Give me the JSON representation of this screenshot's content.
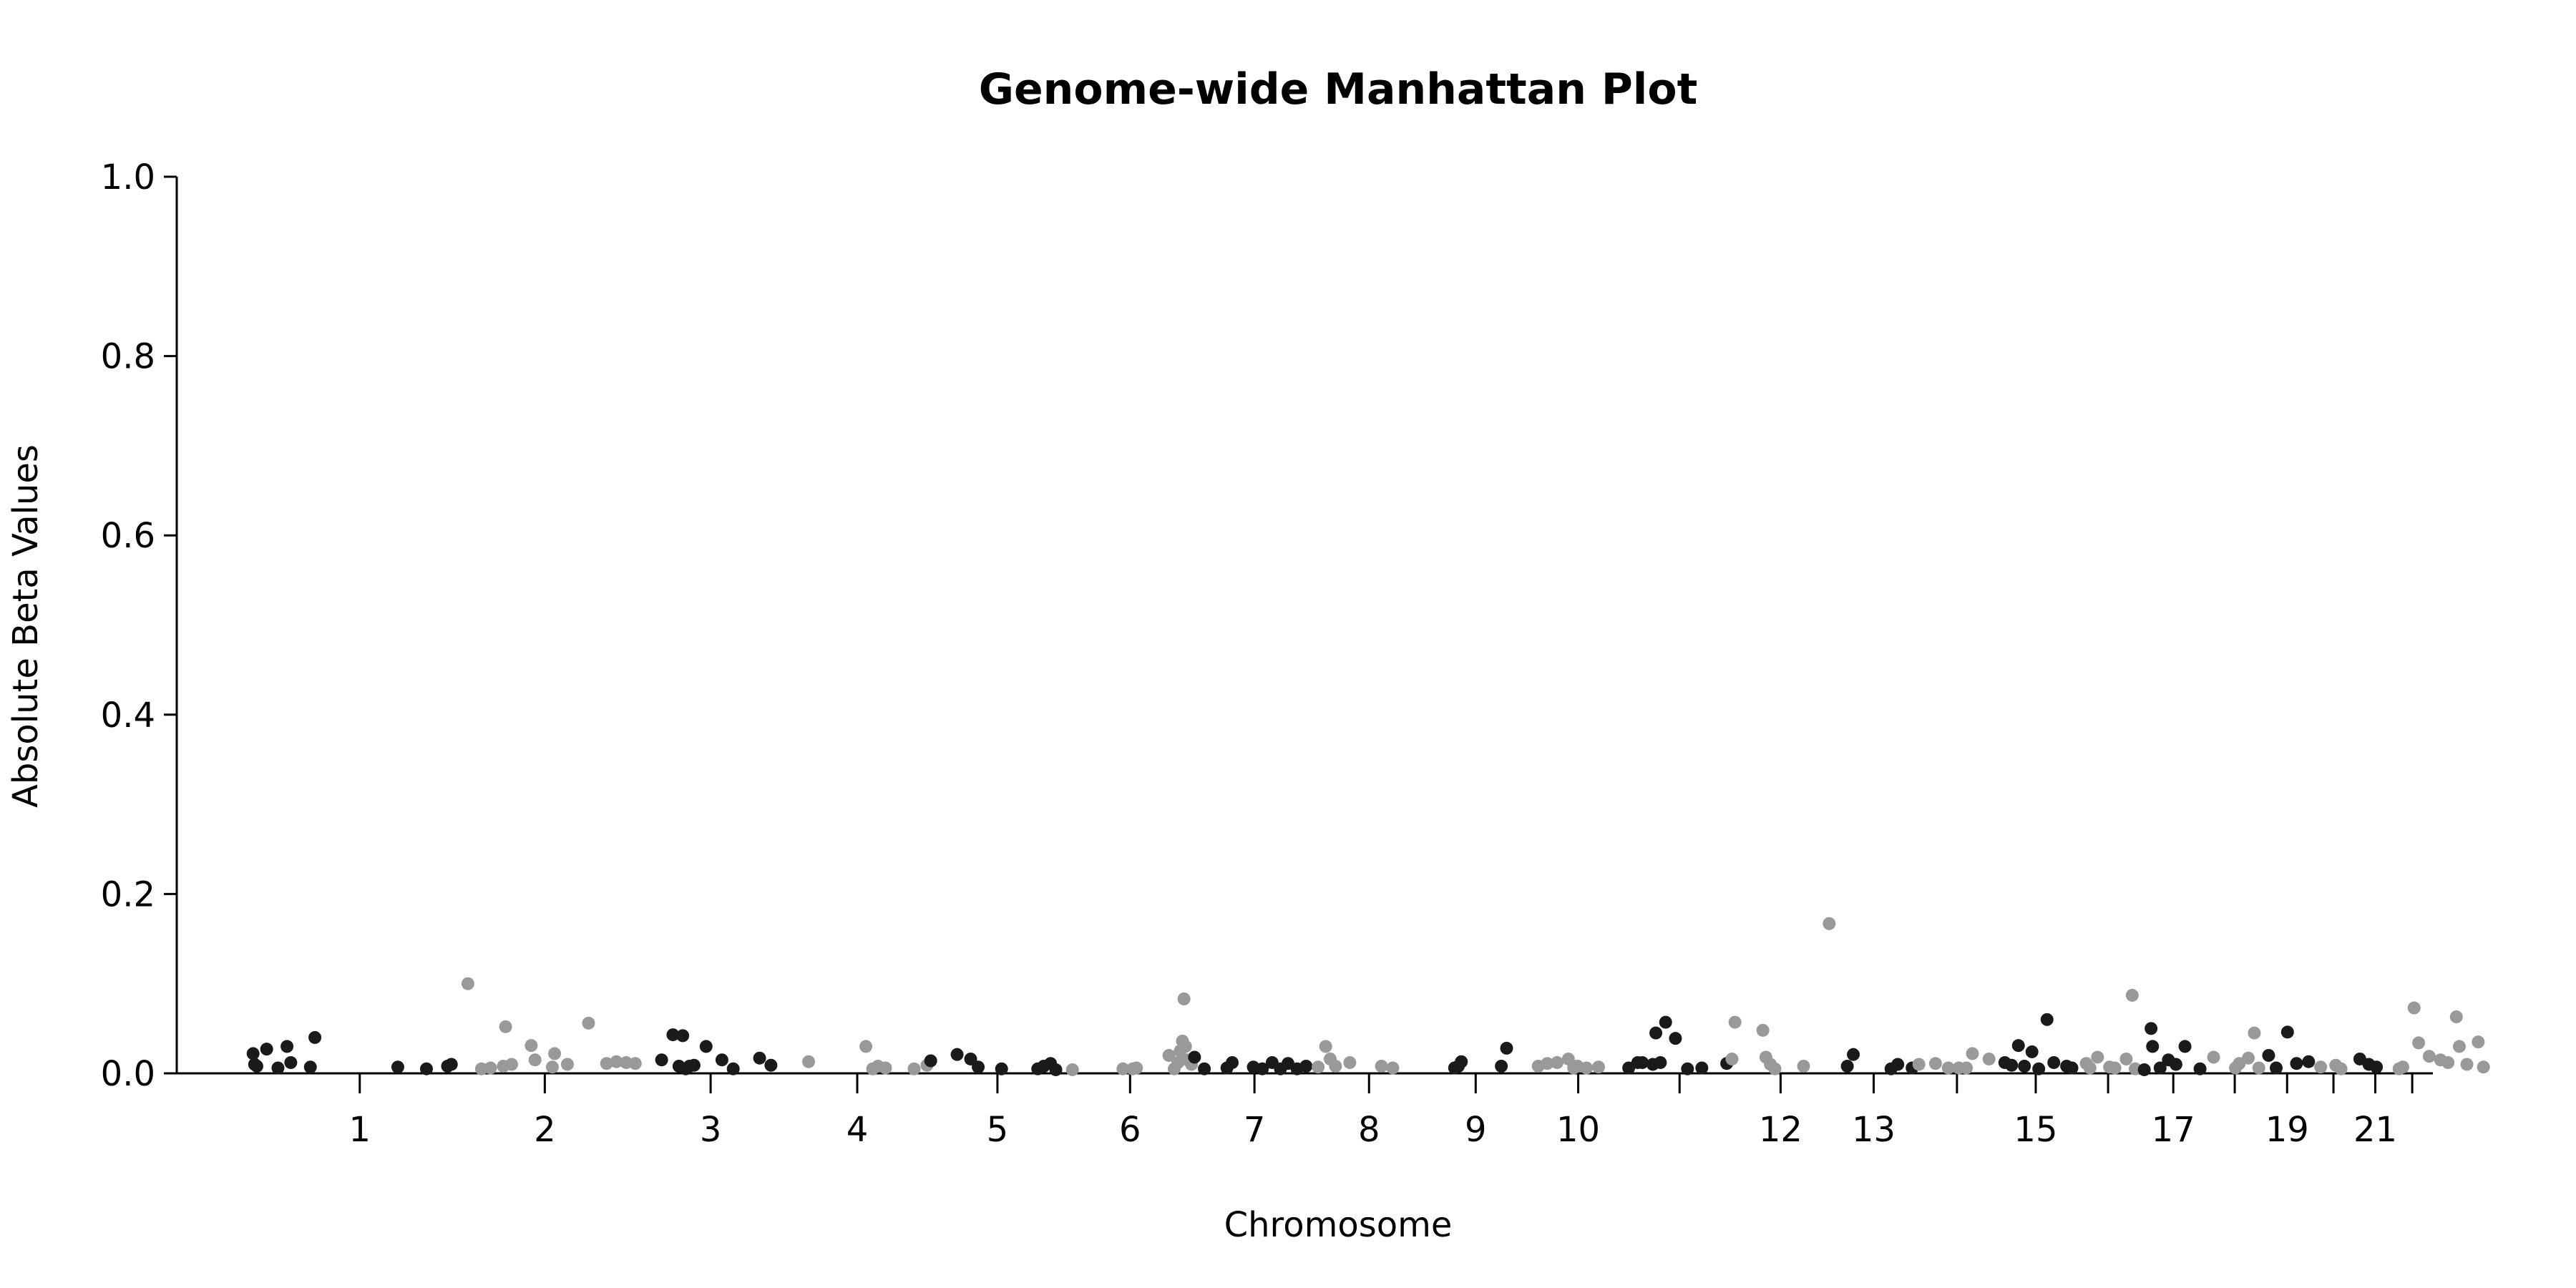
{
  "chart_data": {
    "type": "scatter",
    "title": "Genome-wide Manhattan Plot",
    "xlabel": "Chromosome",
    "ylabel": "Absolute Beta Values",
    "ylim": [
      0,
      1.0
    ],
    "yticks": [
      0.0,
      0.2,
      0.4,
      0.6,
      0.8,
      1.0
    ],
    "ytick_labels": [
      "0.0",
      "0.2",
      "0.4",
      "0.6",
      "0.8",
      "1.0"
    ],
    "grid": false,
    "colors": {
      "odd": "#1a1a1a",
      "even": "#999999"
    },
    "chromosomes": [
      {
        "chr": 1,
        "label": "1",
        "start": 0,
        "end": 249
      },
      {
        "chr": 2,
        "label": "2",
        "start": 249,
        "end": 491
      },
      {
        "chr": 3,
        "label": "3",
        "start": 491,
        "end": 689
      },
      {
        "chr": 4,
        "label": "4",
        "start": 689,
        "end": 880
      },
      {
        "chr": 5,
        "label": "5",
        "start": 880,
        "end": 1061
      },
      {
        "chr": 6,
        "label": "6",
        "start": 1061,
        "end": 1232
      },
      {
        "chr": 7,
        "label": "7",
        "start": 1232,
        "end": 1391
      },
      {
        "chr": 8,
        "label": "8",
        "start": 1391,
        "end": 1536
      },
      {
        "chr": 9,
        "label": "9",
        "start": 1536,
        "end": 1674
      },
      {
        "chr": 10,
        "label": "10",
        "start": 1674,
        "end": 1808
      },
      {
        "chr": 11,
        "label": "",
        "start": 1808,
        "end": 1943
      },
      {
        "chr": 12,
        "label": "12",
        "start": 1943,
        "end": 2076
      },
      {
        "chr": 13,
        "label": "13",
        "start": 2076,
        "end": 2190
      },
      {
        "chr": 14,
        "label": "",
        "start": 2190,
        "end": 2297
      },
      {
        "chr": 15,
        "label": "15",
        "start": 2297,
        "end": 2399
      },
      {
        "chr": 16,
        "label": "",
        "start": 2399,
        "end": 2489
      },
      {
        "chr": 17,
        "label": "17",
        "start": 2489,
        "end": 2572
      },
      {
        "chr": 18,
        "label": "",
        "start": 2572,
        "end": 2652
      },
      {
        "chr": 19,
        "label": "19",
        "start": 2652,
        "end": 2711
      },
      {
        "chr": 20,
        "label": "",
        "start": 2711,
        "end": 2775
      },
      {
        "chr": 21,
        "label": "21",
        "start": 2775,
        "end": 2822
      },
      {
        "chr": 22,
        "label": "",
        "start": 2822,
        "end": 2873
      }
    ],
    "points": [
      [
        -17,
        0.022
      ],
      [
        -15,
        0.01
      ],
      [
        -12,
        0.008
      ],
      [
        1,
        0.027
      ],
      [
        16,
        0.006
      ],
      [
        28,
        0.03
      ],
      [
        33,
        0.012
      ],
      [
        59,
        0.007
      ],
      [
        65,
        0.04
      ],
      [
        175,
        0.007
      ],
      [
        213,
        0.005
      ],
      [
        241,
        0.008
      ],
      [
        246,
        0.01
      ],
      [
        268,
        0.1
      ],
      [
        286,
        0.005
      ],
      [
        298,
        0.006
      ],
      [
        315,
        0.008
      ],
      [
        318,
        0.052
      ],
      [
        326,
        0.01
      ],
      [
        352,
        0.031
      ],
      [
        357,
        0.015
      ],
      [
        380,
        0.007
      ],
      [
        383,
        0.022
      ],
      [
        400,
        0.01
      ],
      [
        428,
        0.056
      ],
      [
        452,
        0.011
      ],
      [
        465,
        0.013
      ],
      [
        478,
        0.012
      ],
      [
        490,
        0.011
      ],
      [
        525,
        0.015
      ],
      [
        540,
        0.043
      ],
      [
        548,
        0.008
      ],
      [
        553,
        0.042
      ],
      [
        557,
        0.005
      ],
      [
        562,
        0.008
      ],
      [
        568,
        0.009
      ],
      [
        584,
        0.03
      ],
      [
        605,
        0.015
      ],
      [
        620,
        0.005
      ],
      [
        655,
        0.017
      ],
      [
        670,
        0.009
      ],
      [
        720,
        0.013
      ],
      [
        796,
        0.03
      ],
      [
        805,
        0.005
      ],
      [
        812,
        0.008
      ],
      [
        822,
        0.006
      ],
      [
        860,
        0.005
      ],
      [
        877,
        0.009
      ],
      [
        882,
        0.014
      ],
      [
        917,
        0.021
      ],
      [
        935,
        0.016
      ],
      [
        945,
        0.007
      ],
      [
        976,
        0.005
      ],
      [
        1024,
        0.005
      ],
      [
        1032,
        0.008
      ],
      [
        1041,
        0.011
      ],
      [
        1048,
        0.004
      ],
      [
        1070,
        0.004
      ],
      [
        1137,
        0.005
      ],
      [
        1150,
        0.005
      ],
      [
        1155,
        0.006
      ],
      [
        1198,
        0.02
      ],
      [
        1205,
        0.005
      ],
      [
        1210,
        0.012
      ],
      [
        1213,
        0.025
      ],
      [
        1216,
        0.036
      ],
      [
        1218,
        0.083
      ],
      [
        1220,
        0.03
      ],
      [
        1223,
        0.015
      ],
      [
        1228,
        0.01
      ],
      [
        1232,
        0.018
      ],
      [
        1245,
        0.005
      ],
      [
        1275,
        0.006
      ],
      [
        1282,
        0.012
      ],
      [
        1310,
        0.007
      ],
      [
        1322,
        0.005
      ],
      [
        1335,
        0.012
      ],
      [
        1346,
        0.005
      ],
      [
        1356,
        0.011
      ],
      [
        1368,
        0.005
      ],
      [
        1380,
        0.008
      ],
      [
        1396,
        0.007
      ],
      [
        1406,
        0.03
      ],
      [
        1412,
        0.016
      ],
      [
        1419,
        0.008
      ],
      [
        1438,
        0.012
      ],
      [
        1480,
        0.008
      ],
      [
        1495,
        0.006
      ],
      [
        1577,
        0.006
      ],
      [
        1582,
        0.008
      ],
      [
        1586,
        0.013
      ],
      [
        1639,
        0.008
      ],
      [
        1646,
        0.028
      ],
      [
        1688,
        0.008
      ],
      [
        1700,
        0.011
      ],
      [
        1713,
        0.012
      ],
      [
        1728,
        0.016
      ],
      [
        1735,
        0.006
      ],
      [
        1740,
        0.008
      ],
      [
        1752,
        0.006
      ],
      [
        1768,
        0.007
      ],
      [
        1808,
        0.006
      ],
      [
        1820,
        0.012
      ],
      [
        1826,
        0.012
      ],
      [
        1840,
        0.01
      ],
      [
        1844,
        0.045
      ],
      [
        1850,
        0.012
      ],
      [
        1857,
        0.057
      ],
      [
        1870,
        0.039
      ],
      [
        1886,
        0.005
      ],
      [
        1905,
        0.006
      ],
      [
        1938,
        0.011
      ],
      [
        1945,
        0.016
      ],
      [
        1949,
        0.057
      ],
      [
        1986,
        0.048
      ],
      [
        1990,
        0.018
      ],
      [
        1996,
        0.01
      ],
      [
        2002,
        0.005
      ],
      [
        2040,
        0.008
      ],
      [
        2074,
        0.167
      ],
      [
        2098,
        0.008
      ],
      [
        2106,
        0.021
      ],
      [
        2156,
        0.005
      ],
      [
        2165,
        0.01
      ],
      [
        2184,
        0.006
      ],
      [
        2193,
        0.01
      ],
      [
        2215,
        0.011
      ],
      [
        2232,
        0.006
      ],
      [
        2246,
        0.006
      ],
      [
        2256,
        0.006
      ],
      [
        2264,
        0.022
      ],
      [
        2286,
        0.016
      ],
      [
        2307,
        0.012
      ],
      [
        2316,
        0.009
      ],
      [
        2325,
        0.031
      ],
      [
        2333,
        0.008
      ],
      [
        2343,
        0.024
      ],
      [
        2352,
        0.005
      ],
      [
        2363,
        0.06
      ],
      [
        2372,
        0.012
      ],
      [
        2389,
        0.008
      ],
      [
        2396,
        0.006
      ],
      [
        2415,
        0.011
      ],
      [
        2420,
        0.006
      ],
      [
        2430,
        0.018
      ],
      [
        2446,
        0.007
      ],
      [
        2453,
        0.006
      ],
      [
        2468,
        0.016
      ],
      [
        2476,
        0.087
      ],
      [
        2480,
        0.005
      ],
      [
        2492,
        0.004
      ],
      [
        2501,
        0.05
      ],
      [
        2503,
        0.03
      ],
      [
        2513,
        0.006
      ],
      [
        2524,
        0.015
      ],
      [
        2534,
        0.01
      ],
      [
        2546,
        0.03
      ],
      [
        2566,
        0.005
      ],
      [
        2584,
        0.018
      ],
      [
        2613,
        0.006
      ],
      [
        2618,
        0.011
      ],
      [
        2630,
        0.017
      ],
      [
        2638,
        0.045
      ],
      [
        2644,
        0.006
      ],
      [
        2657,
        0.02
      ],
      [
        2667,
        0.006
      ],
      [
        2682,
        0.046
      ],
      [
        2694,
        0.011
      ],
      [
        2710,
        0.013
      ],
      [
        2726,
        0.007
      ],
      [
        2746,
        0.009
      ],
      [
        2753,
        0.005
      ],
      [
        2778,
        0.016
      ],
      [
        2790,
        0.01
      ],
      [
        2800,
        0.007
      ],
      [
        2830,
        0.005
      ],
      [
        2835,
        0.007
      ],
      [
        2850,
        0.073
      ],
      [
        2856,
        0.034
      ],
      [
        2870,
        0.019
      ],
      [
        2885,
        0.015
      ],
      [
        2895,
        0.012
      ],
      [
        2906,
        0.063
      ],
      [
        2910,
        0.03
      ],
      [
        2920,
        0.01
      ],
      [
        2935,
        0.035
      ],
      [
        2942,
        0.007
      ]
    ]
  }
}
